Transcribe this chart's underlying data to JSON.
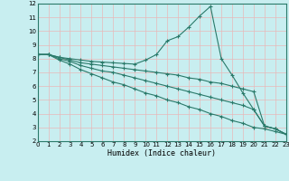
{
  "xlabel": "Humidex (Indice chaleur)",
  "ylabel": "",
  "bg_color": "#c8eef0",
  "grid_color": "#e8b8b8",
  "line_color": "#2a7a6a",
  "xlim": [
    0,
    23
  ],
  "ylim": [
    2,
    12
  ],
  "xticks": [
    0,
    1,
    2,
    3,
    4,
    5,
    6,
    7,
    8,
    9,
    10,
    11,
    12,
    13,
    14,
    15,
    16,
    17,
    18,
    19,
    20,
    21,
    22,
    23
  ],
  "yticks": [
    2,
    3,
    4,
    5,
    6,
    7,
    8,
    9,
    10,
    11,
    12
  ],
  "line1_x": [
    0,
    1,
    2,
    3,
    4,
    5,
    6,
    7,
    8,
    9,
    10,
    11,
    12,
    13,
    14,
    15,
    16,
    17,
    18,
    19,
    20,
    21,
    22,
    23
  ],
  "line1_y": [
    8.3,
    8.3,
    8.1,
    8.0,
    7.9,
    7.8,
    7.75,
    7.7,
    7.65,
    7.6,
    7.9,
    8.3,
    9.3,
    9.6,
    10.3,
    11.1,
    11.8,
    8.0,
    6.8,
    5.5,
    4.3,
    3.1,
    2.9,
    2.5
  ],
  "line2_x": [
    0,
    1,
    2,
    3,
    4,
    5,
    6,
    7,
    8,
    9,
    10,
    11,
    12,
    13,
    14,
    15,
    16,
    17,
    18,
    19,
    20,
    21,
    22,
    23
  ],
  "line2_y": [
    8.3,
    8.3,
    8.1,
    7.9,
    7.7,
    7.6,
    7.5,
    7.4,
    7.3,
    7.2,
    7.1,
    7.0,
    6.9,
    6.8,
    6.6,
    6.5,
    6.3,
    6.2,
    6.0,
    5.8,
    5.6,
    3.1,
    2.9,
    2.5
  ],
  "line3_x": [
    0,
    1,
    2,
    3,
    4,
    5,
    6,
    7,
    8,
    9,
    10,
    11,
    12,
    13,
    14,
    15,
    16,
    17,
    18,
    19,
    20,
    21,
    22,
    23
  ],
  "line3_y": [
    8.3,
    8.3,
    8.0,
    7.8,
    7.5,
    7.3,
    7.1,
    7.0,
    6.8,
    6.6,
    6.4,
    6.2,
    6.0,
    5.8,
    5.6,
    5.4,
    5.2,
    5.0,
    4.8,
    4.6,
    4.3,
    3.1,
    2.9,
    2.5
  ],
  "line4_x": [
    0,
    1,
    2,
    3,
    4,
    5,
    6,
    7,
    8,
    9,
    10,
    11,
    12,
    13,
    14,
    15,
    16,
    17,
    18,
    19,
    20,
    21,
    22,
    23
  ],
  "line4_y": [
    8.3,
    8.3,
    7.9,
    7.6,
    7.2,
    6.9,
    6.6,
    6.3,
    6.1,
    5.8,
    5.5,
    5.3,
    5.0,
    4.8,
    4.5,
    4.3,
    4.0,
    3.8,
    3.5,
    3.3,
    3.0,
    2.9,
    2.7,
    2.5
  ]
}
